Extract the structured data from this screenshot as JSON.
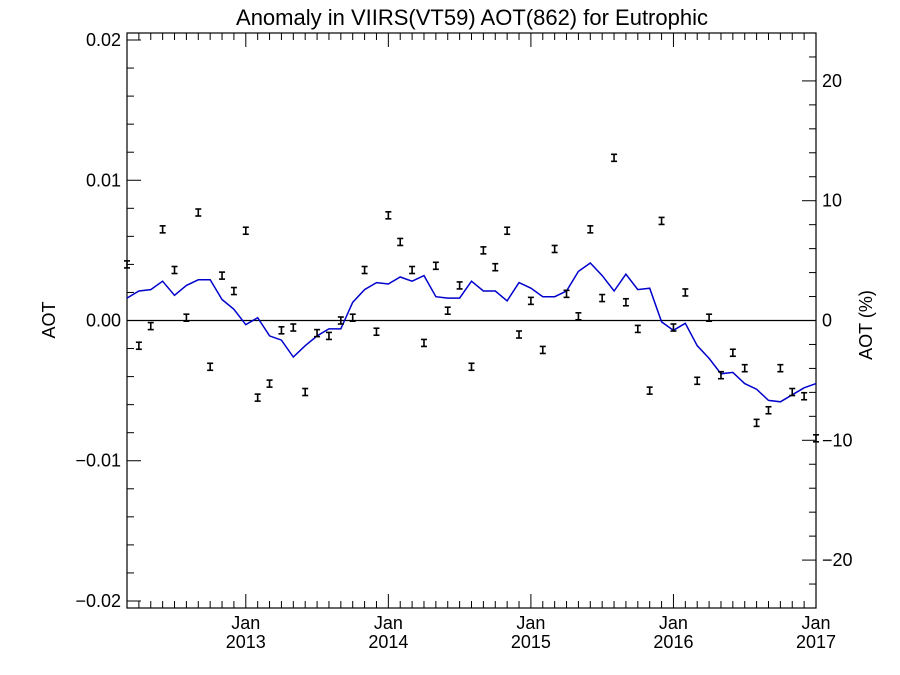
{
  "chart_data": {
    "type": "scatter",
    "title": "Anomaly in VIIRS(VT59) AOT(862) for Eutrophic",
    "ylabel": "AOT",
    "y2label": "AOT (%)",
    "xlim": [
      "2012-03-01",
      "2017-01-01"
    ],
    "ylim": [
      -0.0205,
      0.0205
    ],
    "y2lim": [
      -24,
      24
    ],
    "y_ticks": [
      -0.02,
      -0.01,
      0.0,
      0.01,
      0.02
    ],
    "y_tick_labels": [
      "−0.02",
      "−0.01",
      "0.00",
      "0.01",
      "0.02"
    ],
    "y2_ticks": [
      -20,
      -10,
      0,
      10,
      20
    ],
    "y2_tick_labels": [
      "−20",
      "−10",
      "0",
      "10",
      "20"
    ],
    "x_ticks": [
      {
        "date": "2013-01-01",
        "month": "Jan",
        "year": "2013"
      },
      {
        "date": "2014-01-01",
        "month": "Jan",
        "year": "2014"
      },
      {
        "date": "2015-01-01",
        "month": "Jan",
        "year": "2015"
      },
      {
        "date": "2016-01-01",
        "month": "Jan",
        "year": "2016"
      },
      {
        "date": "2017-01-01",
        "month": "Jan",
        "year": "2017"
      }
    ],
    "zero_line": true,
    "grid": false,
    "colors": {
      "points": "#000000",
      "line": "#0000cc",
      "axes": "#000000"
    },
    "series": [
      {
        "kind": "points_with_errorbars",
        "x": [
          "2012-03",
          "2012-04",
          "2012-05",
          "2012-06",
          "2012-07",
          "2012-08",
          "2012-09",
          "2012-10",
          "2012-11",
          "2012-12",
          "2013-01",
          "2013-02",
          "2013-03",
          "2013-04",
          "2013-05",
          "2013-06",
          "2013-07",
          "2013-08",
          "2013-09",
          "2013-10",
          "2013-11",
          "2013-12",
          "2014-01",
          "2014-02",
          "2014-03",
          "2014-04",
          "2014-05",
          "2014-06",
          "2014-07",
          "2014-08",
          "2014-09",
          "2014-10",
          "2014-11",
          "2014-12",
          "2015-01",
          "2015-02",
          "2015-03",
          "2015-04",
          "2015-05",
          "2015-06",
          "2015-07",
          "2015-08",
          "2015-09",
          "2015-10",
          "2015-11",
          "2015-12",
          "2016-01",
          "2016-02",
          "2016-03",
          "2016-04",
          "2016-05",
          "2016-06",
          "2016-07",
          "2016-08",
          "2016-09",
          "2016-10",
          "2016-11",
          "2016-12",
          "2017-01"
        ],
        "values": [
          0.004,
          -0.0018,
          -0.0004,
          0.0065,
          0.0036,
          0.0002,
          0.0077,
          -0.0033,
          0.0032,
          0.0021,
          0.0064,
          -0.0055,
          -0.0045,
          -0.0007,
          -0.0005,
          -0.0051,
          -0.0009,
          -0.0011,
          0.0,
          0.0002,
          0.0036,
          -0.0008,
          0.0075,
          0.0056,
          0.0036,
          -0.0016,
          0.0039,
          0.0007,
          0.0025,
          -0.0033,
          0.005,
          0.0038,
          0.0064,
          -0.001,
          0.0014,
          -0.0021,
          0.0051,
          0.0019,
          0.0003,
          0.0065,
          0.0016,
          0.0116,
          0.0013,
          -0.0006,
          -0.005,
          0.0071,
          -0.0005,
          0.002,
          -0.0043,
          0.0002,
          -0.0039,
          -0.0023,
          -0.0034,
          -0.0073,
          -0.0064,
          -0.0034,
          -0.0051,
          -0.0054,
          -0.0084
        ],
        "error": 0.00025
      },
      {
        "kind": "line",
        "x": [
          "2012-03",
          "2012-04",
          "2012-05",
          "2012-06",
          "2012-07",
          "2012-08",
          "2012-09",
          "2012-10",
          "2012-11",
          "2012-12",
          "2013-01",
          "2013-02",
          "2013-03",
          "2013-04",
          "2013-05",
          "2013-06",
          "2013-07",
          "2013-08",
          "2013-09",
          "2013-10",
          "2013-11",
          "2013-12",
          "2014-01",
          "2014-02",
          "2014-03",
          "2014-04",
          "2014-05",
          "2014-06",
          "2014-07",
          "2014-08",
          "2014-09",
          "2014-10",
          "2014-11",
          "2014-12",
          "2015-01",
          "2015-02",
          "2015-03",
          "2015-04",
          "2015-05",
          "2015-06",
          "2015-07",
          "2015-08",
          "2015-09",
          "2015-10",
          "2015-11",
          "2015-12",
          "2016-01",
          "2016-02",
          "2016-03",
          "2016-04",
          "2016-05",
          "2016-06",
          "2016-07",
          "2016-08",
          "2016-09",
          "2016-10",
          "2016-11",
          "2016-12",
          "2017-01"
        ],
        "values": [
          0.0016,
          0.0021,
          0.0022,
          0.0028,
          0.0018,
          0.0025,
          0.0029,
          0.0029,
          0.0015,
          0.0008,
          -0.0003,
          0.0002,
          -0.0011,
          -0.0014,
          -0.0026,
          -0.0018,
          -0.0011,
          -0.0006,
          -0.0006,
          0.0013,
          0.0022,
          0.0027,
          0.0026,
          0.0031,
          0.0028,
          0.0032,
          0.0017,
          0.0016,
          0.0016,
          0.0028,
          0.0021,
          0.0021,
          0.0014,
          0.0027,
          0.0023,
          0.0017,
          0.0017,
          0.0021,
          0.0035,
          0.0041,
          0.0032,
          0.0021,
          0.0033,
          0.0022,
          0.0023,
          -0.0001,
          -0.0007,
          -0.0002,
          -0.0018,
          -0.0027,
          -0.0038,
          -0.0037,
          -0.0045,
          -0.0049,
          -0.0057,
          -0.0058,
          -0.0053,
          -0.0048,
          -0.0045
        ]
      }
    ]
  }
}
